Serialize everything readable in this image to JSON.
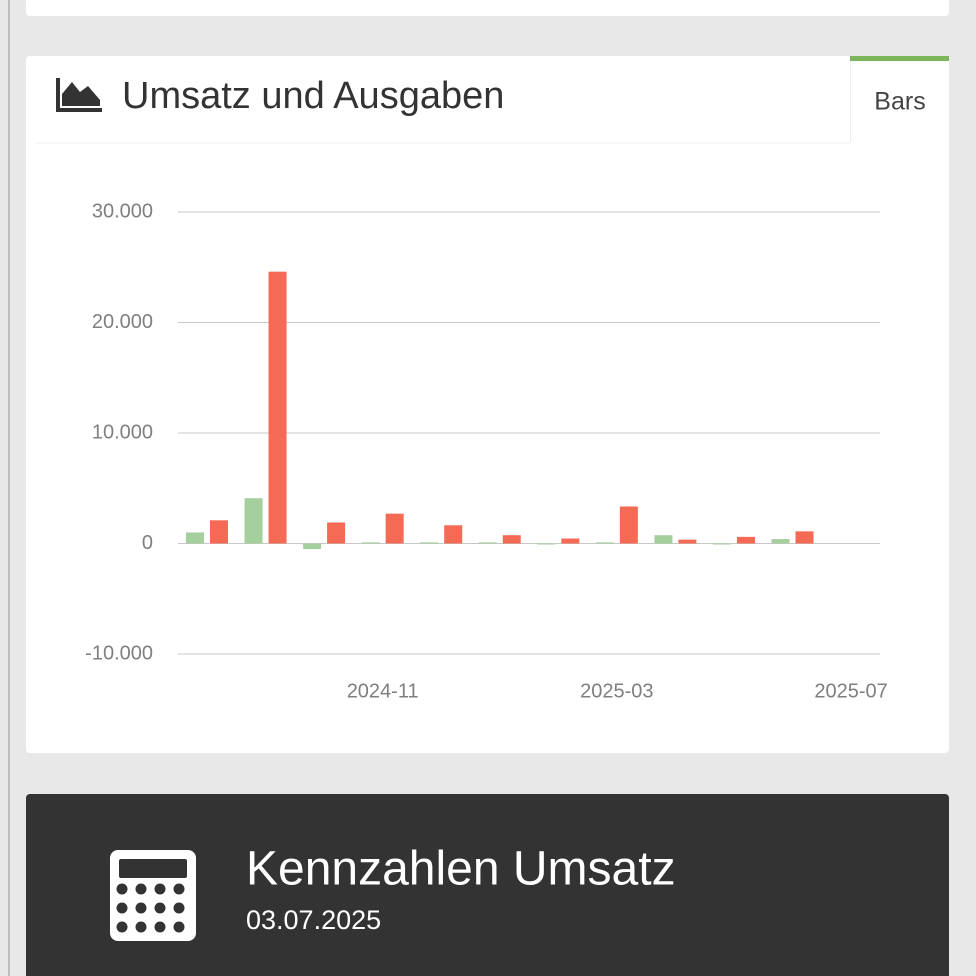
{
  "panel": {
    "title": "Umsatz und Ausgaben",
    "tab": "Bars"
  },
  "chart_data": {
    "type": "bar",
    "categories": [
      null,
      null,
      null,
      "2024-11",
      null,
      null,
      null,
      "2025-03",
      null,
      null,
      null,
      "2025-07"
    ],
    "series": [
      {
        "color": "#a6cf9e",
        "values": [
          1000,
          4100,
          -500,
          100,
          100,
          100,
          0,
          100,
          750,
          0,
          400,
          null
        ]
      },
      {
        "color": "#f46a55",
        "values": [
          2100,
          24600,
          1900,
          2700,
          1650,
          750,
          450,
          3350,
          350,
          600,
          1100,
          null
        ]
      }
    ],
    "ylim": [
      -10000,
      30000
    ],
    "yticks": [
      {
        "value": -10000,
        "label": "-10.000"
      },
      0,
      {
        "value": 10000,
        "label": "10.000"
      },
      {
        "value": 20000,
        "label": "20.000"
      },
      {
        "value": 30000,
        "label": "30.000"
      }
    ],
    "grid": true
  },
  "kpi": {
    "title": "Kennzahlen Umsatz",
    "date": "03.07.2025"
  }
}
